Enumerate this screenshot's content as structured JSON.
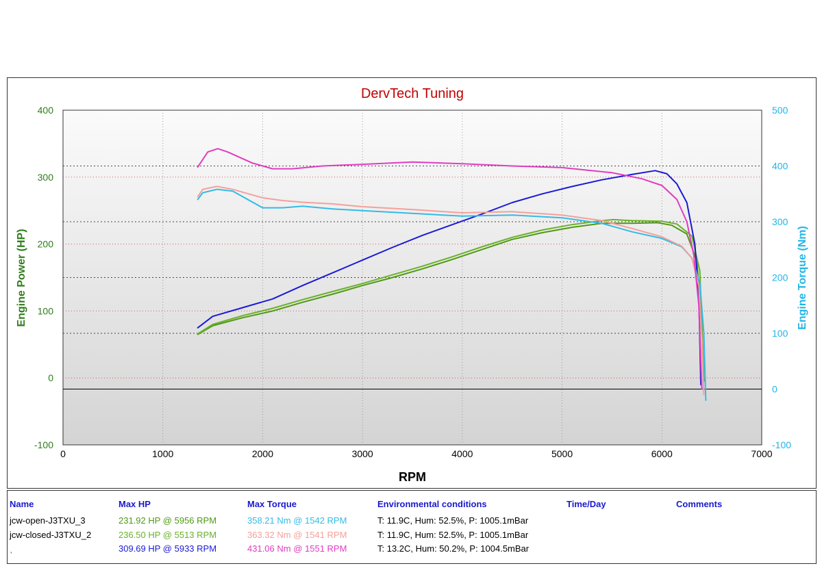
{
  "chart_data": {
    "type": "line",
    "title": "DervTech Tuning",
    "xlabel": "RPM",
    "ylabel_left": "Engine Power (HP)",
    "ylabel_right": "Engine Torque (Nm)",
    "xlim": [
      0,
      7000
    ],
    "ylim_left": [
      -100,
      400
    ],
    "ylim_right": [
      -100,
      500
    ],
    "x_ticks": [
      "0",
      "1000",
      "2000",
      "3000",
      "4000",
      "5000",
      "6000",
      "7000"
    ],
    "y_left_ticks": [
      "-100",
      "0",
      "100",
      "200",
      "300",
      "400"
    ],
    "y_right_ticks": [
      "-100",
      "0",
      "100",
      "200",
      "300",
      "400",
      "500"
    ],
    "series": [
      {
        "name": "jcw-open-J3TXU_3",
        "quantity": "power",
        "axis": "left",
        "color": "#4e9a12",
        "x": [
          1350,
          1500,
          1800,
          2100,
          2400,
          2700,
          3000,
          3300,
          3600,
          3900,
          4200,
          4500,
          4800,
          5100,
          5400,
          5700,
          5956,
          6100,
          6250,
          6350,
          6400,
          6420
        ],
        "y": [
          65,
          78,
          90,
          100,
          113,
          125,
          138,
          150,
          163,
          177,
          192,
          207,
          217,
          225,
          231,
          231,
          231.9,
          228,
          215,
          175,
          80,
          -5
        ]
      },
      {
        "name": "jcw-closed-J3TXU_2",
        "quantity": "power",
        "axis": "left",
        "color": "#6ab02a",
        "x": [
          1350,
          1500,
          1800,
          2100,
          2400,
          2700,
          3000,
          3300,
          3600,
          3900,
          4200,
          4500,
          4800,
          5100,
          5400,
          5513,
          5700,
          6000,
          6150,
          6300,
          6380,
          6410
        ],
        "y": [
          66,
          80,
          93,
          104,
          117,
          129,
          141,
          154,
          167,
          181,
          196,
          210,
          221,
          229,
          235,
          236.5,
          235,
          234,
          230,
          212,
          160,
          40
        ]
      },
      {
        "name": "ˌ",
        "quantity": "power",
        "axis": "left",
        "color": "#1a1ad6",
        "x": [
          1350,
          1500,
          1800,
          2100,
          2400,
          2700,
          3000,
          3300,
          3600,
          3900,
          4200,
          4500,
          4800,
          5100,
          5400,
          5700,
          5933,
          6050,
          6150,
          6250,
          6330,
          6370,
          6390
        ],
        "y": [
          75,
          92,
          105,
          118,
          138,
          157,
          176,
          195,
          213,
          229,
          245,
          262,
          275,
          286,
          296,
          304,
          309.7,
          305,
          290,
          262,
          200,
          120,
          -10
        ]
      },
      {
        "name": "jcw-open-J3TXU_3",
        "quantity": "torque",
        "axis": "right",
        "color": "#33bbe6",
        "x": [
          1350,
          1400,
          1542,
          1700,
          2000,
          2200,
          2400,
          2700,
          3000,
          3500,
          4000,
          4500,
          5000,
          5400,
          5700,
          6000,
          6200,
          6300,
          6380,
          6420,
          6440
        ],
        "y": [
          340,
          352,
          358.2,
          355,
          325,
          325,
          328,
          323,
          320,
          315,
          310,
          312,
          307,
          297,
          282,
          270,
          255,
          235,
          190,
          100,
          -20
        ]
      },
      {
        "name": "jcw-closed-J3TXU_2",
        "quantity": "torque",
        "axis": "right",
        "color": "#f4a09a",
        "x": [
          1350,
          1400,
          1541,
          1700,
          2000,
          2200,
          2400,
          2700,
          3000,
          3500,
          4000,
          4500,
          5000,
          5400,
          5700,
          6000,
          6200,
          6300,
          6370,
          6400,
          6420
        ],
        "y": [
          345,
          358,
          363.3,
          358,
          343,
          338,
          335,
          332,
          327,
          322,
          316,
          318,
          312,
          302,
          288,
          273,
          256,
          235,
          185,
          90,
          -10
        ]
      },
      {
        "name": "ˌ",
        "quantity": "torque",
        "axis": "right",
        "color": "#e03cc0",
        "x": [
          1350,
          1450,
          1551,
          1650,
          1900,
          2100,
          2300,
          2600,
          3000,
          3500,
          4000,
          4500,
          5000,
          5500,
          5800,
          6000,
          6150,
          6250,
          6320,
          6370,
          6400
        ],
        "y": [
          398,
          425,
          431.1,
          425,
          405,
          395,
          395,
          400,
          403,
          407,
          404,
          400,
          397,
          388,
          377,
          365,
          340,
          300,
          240,
          150,
          0
        ]
      }
    ]
  },
  "results": {
    "headers": {
      "name": "Name",
      "max_hp": "Max HP",
      "max_torque": "Max Torque",
      "env": "Environmental conditions",
      "time": "Time/Day",
      "comments": "Comments"
    },
    "rows": [
      {
        "name": "jcw-open-J3TXU_3",
        "hp": "231.92 HP @ 5956 RPM",
        "torque": "358.21 Nm @ 1542 RPM",
        "env": "T: 11.9C, Hum: 52.5%, P: 1005.1mBar",
        "hp_color": "#4e9a12",
        "torque_color": "#33bbe6"
      },
      {
        "name": "jcw-closed-J3TXU_2",
        "hp": "236.50 HP @ 5513 RPM",
        "torque": "363.32 Nm @ 1541 RPM",
        "env": "T: 11.9C, Hum: 52.5%, P: 1005.1mBar",
        "hp_color": "#6ab02a",
        "torque_color": "#f4a09a"
      },
      {
        "name": "ˌ",
        "hp": "309.69 HP @ 5933 RPM",
        "torque": "431.06 Nm @ 1551 RPM",
        "env": "T: 13.2C, Hum: 50.2%, P: 1004.5mBar",
        "hp_color": "#1a1ad6",
        "torque_color": "#e03cc0"
      }
    ]
  },
  "colors": {
    "title": "#c00000",
    "left_axis": "#2e7d1a",
    "right_axis": "#1fb5e8",
    "header_blue": "#1a1acc",
    "hp_grid": "#e05050",
    "torque_grid": "#444444"
  }
}
